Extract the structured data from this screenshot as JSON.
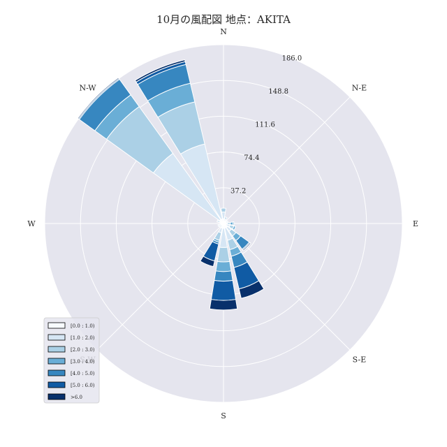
{
  "chart_data": {
    "type": "windrose",
    "title": "10月の風配図 地点：AKITA",
    "directions": [
      "E",
      "N-E",
      "N",
      "N-W",
      "W",
      "S-W",
      "S",
      "S-E"
    ],
    "rings": [
      "37.2",
      "74.4",
      "111.6",
      "148.8",
      "186.0"
    ],
    "rmax": 186.0,
    "legend": {
      "labels": [
        "[0.0 : 1.0)",
        "[1.0 : 2.0)",
        "[2.0 : 3.0)",
        "[3.0 : 4.0)",
        "[4.0 : 5.0)",
        "[5.0 : 6.0)",
        ">6.0"
      ],
      "placement": "lower-left"
    },
    "colors": [
      "#f7fbff",
      "#d6e6f4",
      "#abd0e6",
      "#6aaed6",
      "#3787c0",
      "#105ba4",
      "#08306b"
    ],
    "sectors": [
      {
        "deg": 90.0,
        "cum": [
          5,
          12,
          16,
          16,
          16,
          16,
          16
        ]
      },
      {
        "deg": 67.5,
        "cum": [
          3,
          5,
          7,
          7,
          7,
          7,
          7
        ]
      },
      {
        "deg": 45.0,
        "cum": [
          3,
          4,
          4,
          4,
          4,
          4,
          4
        ]
      },
      {
        "deg": 22.5,
        "cum": [
          3,
          5,
          5,
          5,
          5,
          5,
          5
        ]
      },
      {
        "deg": 0.0,
        "cum": [
          3,
          4,
          7,
          10,
          11,
          11,
          11
        ]
      },
      {
        "deg": 337.5,
        "cum": [
          3,
          7,
          11,
          13,
          13,
          13,
          13
        ]
      },
      {
        "deg": 315.0,
        "cum": [
          5,
          10,
          16,
          22,
          33,
          34,
          35
        ]
      },
      {
        "deg": 292.5,
        "cum": [
          5,
          18,
          28,
          35,
          47,
          70,
          80
        ]
      },
      {
        "deg": 270.0,
        "cum": [
          5,
          25,
          40,
          50,
          60,
          80,
          90
        ]
      },
      {
        "deg": 247.5,
        "cum": [
          5,
          10,
          18,
          20,
          22,
          40,
          46
        ]
      },
      {
        "deg": 225.0,
        "cum": [
          2,
          5,
          5,
          5,
          5,
          5,
          5
        ]
      },
      {
        "deg": 202.5,
        "cum": [
          3,
          5,
          6,
          6,
          6,
          6,
          6
        ]
      },
      {
        "deg": 180.0,
        "cum": [
          2,
          3,
          3,
          3,
          3,
          3,
          3
        ]
      },
      {
        "deg": 157.5,
        "cum": [
          4,
          7,
          7,
          7,
          7,
          7,
          7
        ]
      },
      {
        "deg": 135.0,
        "cum": [
          5,
          90,
          150,
          165,
          185,
          186,
          187
        ]
      },
      {
        "deg": 112.5,
        "cum": [
          5,
          85,
          130,
          150,
          170,
          173,
          175
        ]
      }
    ]
  }
}
